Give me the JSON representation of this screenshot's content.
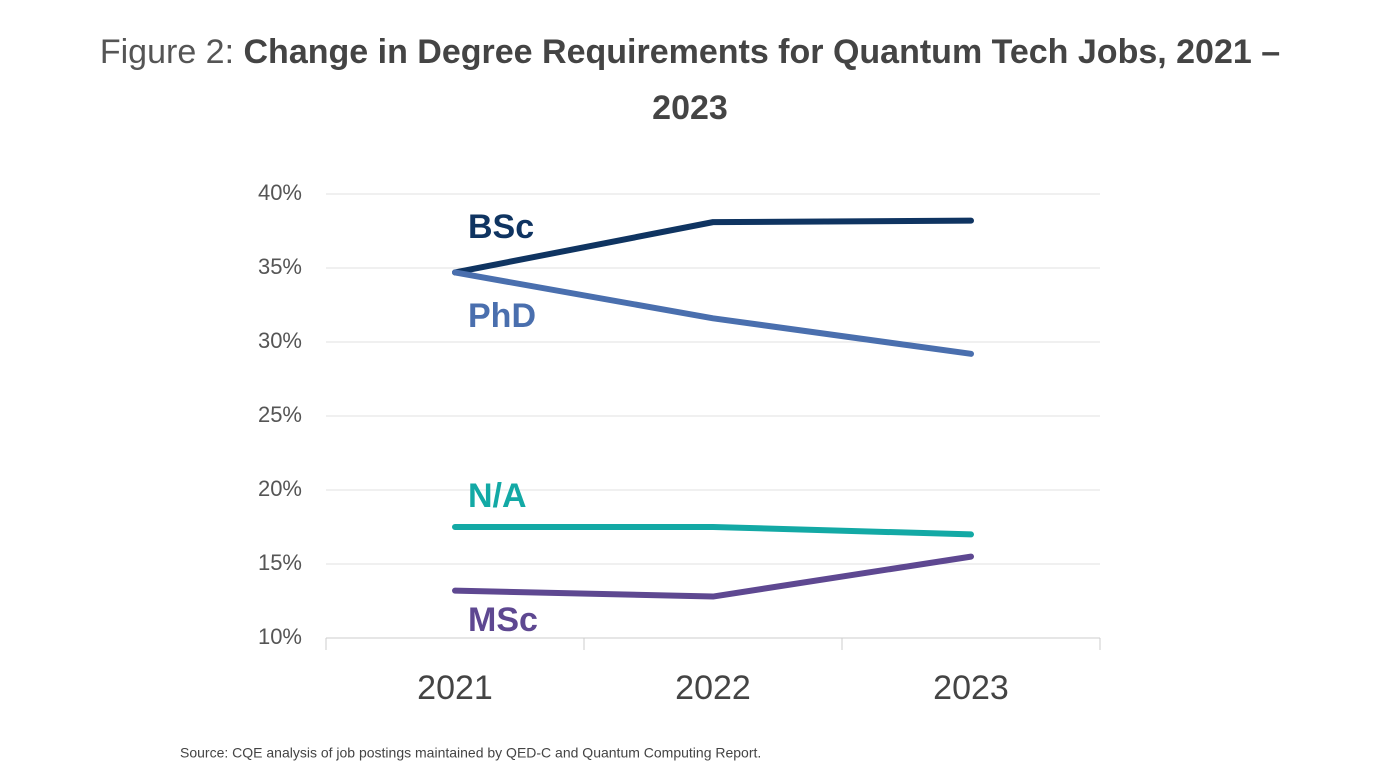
{
  "chart_data": {
    "type": "line",
    "figure_label": "Figure 2:",
    "title": "Change in Degree Requirements for Quantum Tech Jobs, 2021 – 2023",
    "source": "Source: CQE analysis of job postings maintained by QED-C and Quantum Computing Report.",
    "categories": [
      "2021",
      "2022",
      "2023"
    ],
    "series": [
      {
        "name": "BSc",
        "color": "#0f3461",
        "values": [
          34.7,
          38.1,
          38.2
        ]
      },
      {
        "name": "PhD",
        "color": "#4a6fae",
        "values": [
          34.7,
          31.6,
          29.2
        ]
      },
      {
        "name": "N/A",
        "color": "#13a9a5",
        "values": [
          17.5,
          17.5,
          17.0
        ]
      },
      {
        "name": "MSc",
        "color": "#5e4891",
        "values": [
          13.2,
          12.8,
          15.5
        ]
      }
    ],
    "ylim": [
      10,
      40
    ],
    "yticks": [
      {
        "value": 10,
        "label": "10%"
      },
      {
        "value": 15,
        "label": "15%"
      },
      {
        "value": 20,
        "label": "20%"
      },
      {
        "value": 25,
        "label": "25%"
      },
      {
        "value": 30,
        "label": "30%"
      },
      {
        "value": 35,
        "label": "35%"
      },
      {
        "value": 40,
        "label": "40%"
      }
    ],
    "grid": true
  }
}
